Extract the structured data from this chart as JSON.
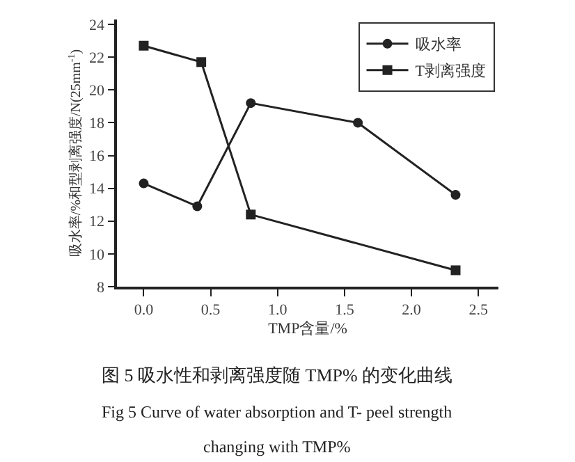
{
  "chart_data": {
    "type": "line",
    "xlabel": "TMP含量/%",
    "ylabel": "吸水率/%和型剥离强度/N(25mm$^{-1}$)",
    "xlim": [
      -0.2,
      2.65
    ],
    "xticks": [
      {
        "value": 0,
        "label": "0.0"
      },
      {
        "value": 0.5,
        "label": "0.5"
      },
      {
        "value": 1,
        "label": "1.0"
      },
      {
        "value": 1.5,
        "label": "1.5"
      },
      {
        "value": 2,
        "label": "2.0"
      },
      {
        "value": 2.5,
        "label": "2.5"
      }
    ],
    "ylim": [
      8,
      24.3
    ],
    "yticks": [
      8,
      10,
      12,
      14,
      16,
      18,
      20,
      22,
      24
    ],
    "legend": "top right",
    "series": [
      {
        "name": "吸水率",
        "color": "#222222",
        "marker": "circle",
        "x": [
          0.0,
          0.4,
          0.8,
          1.6,
          2.33
        ],
        "values": [
          14.3,
          12.9,
          19.2,
          18.0,
          13.6
        ]
      },
      {
        "name": "T剥离强度",
        "color": "#222222",
        "marker": "square",
        "x": [
          0.0,
          0.43,
          0.8,
          2.33
        ],
        "values": [
          22.7,
          21.7,
          12.4,
          9.0
        ]
      }
    ],
    "annotations": [
      "图 5 吸水性和剥离强度随 TMP% 的变化曲线",
      "Fig 5 Curve of water absorption and T- peel strength",
      "changing with TMP%"
    ]
  }
}
